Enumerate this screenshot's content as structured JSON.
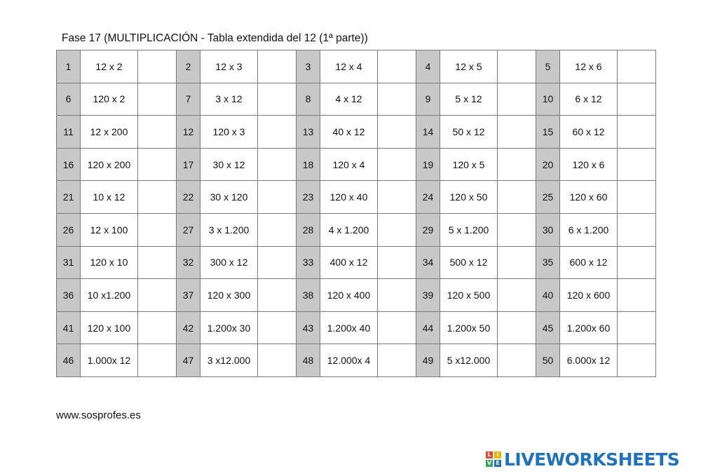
{
  "title": "Fase 17 (MULTIPLICACIÓN - Tabla extendida del 12 (1ª parte))",
  "rows": [
    [
      {
        "n": "1",
        "op": "12 x 2"
      },
      {
        "n": "2",
        "op": "12 x 3"
      },
      {
        "n": "3",
        "op": "12 x 4"
      },
      {
        "n": "4",
        "op": "12 x 5"
      },
      {
        "n": "5",
        "op": "12 x 6"
      }
    ],
    [
      {
        "n": "6",
        "op": "120 x 2"
      },
      {
        "n": "7",
        "op": "3 x 12"
      },
      {
        "n": "8",
        "op": "4 x 12"
      },
      {
        "n": "9",
        "op": "5 x 12"
      },
      {
        "n": "10",
        "op": "6 x 12"
      }
    ],
    [
      {
        "n": "11",
        "op": "12 x 200"
      },
      {
        "n": "12",
        "op": "120 x 3"
      },
      {
        "n": "13",
        "op": "40 x 12"
      },
      {
        "n": "14",
        "op": "50 x 12"
      },
      {
        "n": "15",
        "op": "60 x 12"
      }
    ],
    [
      {
        "n": "16",
        "op": "120 x 200"
      },
      {
        "n": "17",
        "op": "30 x 12"
      },
      {
        "n": "18",
        "op": "120 x 4"
      },
      {
        "n": "19",
        "op": "120 x 5"
      },
      {
        "n": "20",
        "op": "120 x 6"
      }
    ],
    [
      {
        "n": "21",
        "op": "10 x 12"
      },
      {
        "n": "22",
        "op": "30 x 120"
      },
      {
        "n": "23",
        "op": "120 x 40"
      },
      {
        "n": "24",
        "op": "120 x 50"
      },
      {
        "n": "25",
        "op": "120 x 60"
      }
    ],
    [
      {
        "n": "26",
        "op": "12 x 100"
      },
      {
        "n": "27",
        "op": "3 x 1.200"
      },
      {
        "n": "28",
        "op": "4 x 1.200"
      },
      {
        "n": "29",
        "op": "5 x 1.200"
      },
      {
        "n": "30",
        "op": "6 x 1.200"
      }
    ],
    [
      {
        "n": "31",
        "op": "120 x 10"
      },
      {
        "n": "32",
        "op": "300 x 12"
      },
      {
        "n": "33",
        "op": "400 x 12"
      },
      {
        "n": "34",
        "op": "500 x 12"
      },
      {
        "n": "35",
        "op": "600 x 12"
      }
    ],
    [
      {
        "n": "36",
        "op": "10 x1.200"
      },
      {
        "n": "37",
        "op": "120 x 300"
      },
      {
        "n": "38",
        "op": "120 x 400"
      },
      {
        "n": "39",
        "op": "120 x 500"
      },
      {
        "n": "40",
        "op": "120 x 600"
      }
    ],
    [
      {
        "n": "41",
        "op": "120 x 100"
      },
      {
        "n": "42",
        "op": "1.200x 30"
      },
      {
        "n": "43",
        "op": "1.200x 40"
      },
      {
        "n": "44",
        "op": "1.200x 50"
      },
      {
        "n": "45",
        "op": "1.200x 60"
      }
    ],
    [
      {
        "n": "46",
        "op": "1.000x 12"
      },
      {
        "n": "47",
        "op": "3 x12.000"
      },
      {
        "n": "48",
        "op": "12.000x 4"
      },
      {
        "n": "49",
        "op": "5 x12.000"
      },
      {
        "n": "50",
        "op": "6.000x 12"
      }
    ]
  ],
  "footer": "www.sosprofes.es",
  "brand": {
    "text": "LIVEWORKSHEETS",
    "logo_letters": [
      "L",
      "I",
      "V",
      "E"
    ],
    "logo_colors": [
      "#e8453c",
      "#f4b400",
      "#34a853",
      "#1e73be"
    ],
    "text_color": "#1e73be"
  }
}
